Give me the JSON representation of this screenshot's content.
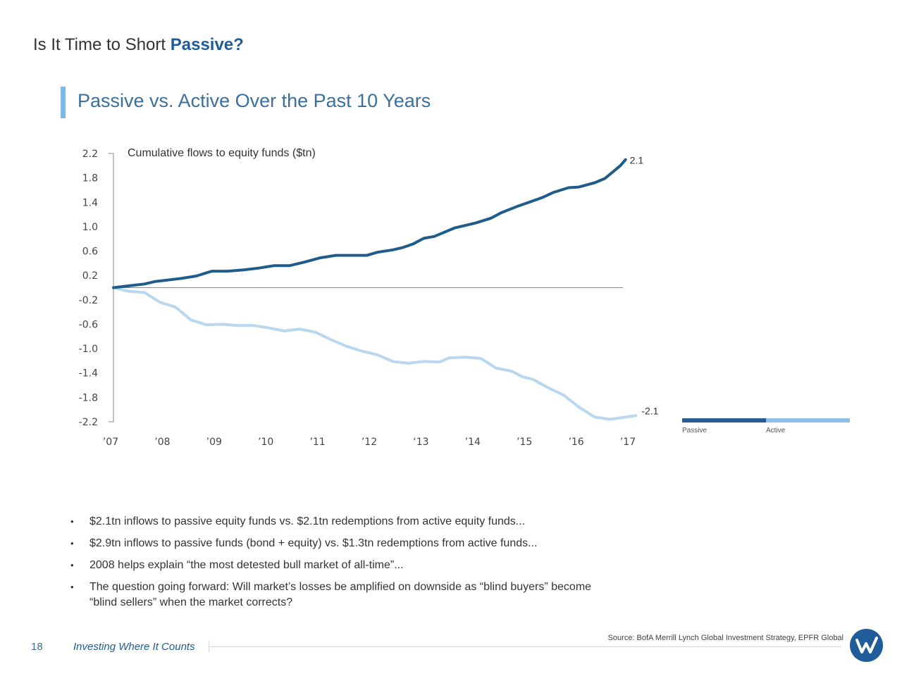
{
  "header": {
    "title_plain": "Is It Time to Short",
    "title_emphasis": "Passive?",
    "subtitle": "Passive vs. Active Over the Past 10 Years"
  },
  "chart_data": {
    "type": "line",
    "annotation": "Cumulative flows to equity funds ($tn)",
    "ylim": [
      -2.2,
      2.2
    ],
    "y_ticks": [
      "2.2",
      "1.8",
      "1.4",
      "1.0",
      "0.6",
      "0.2",
      "-0.2",
      "-0.6",
      "-1.0",
      "-1.4",
      "-1.8",
      "-2.2"
    ],
    "x_ticks": [
      "’07",
      "’08",
      "’09",
      "’10",
      "’11",
      "’12",
      "‘13",
      "’14",
      "’15",
      "’16",
      "’17"
    ],
    "x_tick_years": [
      2007.0,
      2008.0,
      2009.0,
      2010.0,
      2011.0,
      2012.0,
      2013.0,
      2014.0,
      2015.0,
      2016.0,
      2017.0
    ],
    "grid": false,
    "legend_position": "right",
    "series": [
      {
        "name": "Passive",
        "color": "#1f5c8c",
        "end_label": "2.1",
        "points": [
          [
            2007.0,
            0.0
          ],
          [
            2007.3,
            0.03
          ],
          [
            2007.6,
            0.06
          ],
          [
            2007.8,
            0.1
          ],
          [
            2008.0,
            0.12
          ],
          [
            2008.3,
            0.15
          ],
          [
            2008.6,
            0.19
          ],
          [
            2008.9,
            0.27
          ],
          [
            2009.2,
            0.27
          ],
          [
            2009.5,
            0.29
          ],
          [
            2009.8,
            0.32
          ],
          [
            2010.1,
            0.36
          ],
          [
            2010.4,
            0.36
          ],
          [
            2010.7,
            0.42
          ],
          [
            2011.0,
            0.49
          ],
          [
            2011.3,
            0.53
          ],
          [
            2011.6,
            0.53
          ],
          [
            2011.9,
            0.53
          ],
          [
            2012.1,
            0.58
          ],
          [
            2012.4,
            0.62
          ],
          [
            2012.6,
            0.66
          ],
          [
            2012.8,
            0.72
          ],
          [
            2013.0,
            0.81
          ],
          [
            2013.2,
            0.84
          ],
          [
            2013.4,
            0.91
          ],
          [
            2013.6,
            0.98
          ],
          [
            2013.8,
            1.02
          ],
          [
            2014.0,
            1.06
          ],
          [
            2014.3,
            1.14
          ],
          [
            2014.5,
            1.23
          ],
          [
            2014.8,
            1.33
          ],
          [
            2015.0,
            1.39
          ],
          [
            2015.3,
            1.48
          ],
          [
            2015.5,
            1.56
          ],
          [
            2015.8,
            1.64
          ],
          [
            2016.0,
            1.65
          ],
          [
            2016.3,
            1.72
          ],
          [
            2016.5,
            1.79
          ],
          [
            2016.8,
            2.0
          ],
          [
            2016.9,
            2.1
          ]
        ]
      },
      {
        "name": "Active",
        "color": "#b9d7ef",
        "end_label": "-2.1",
        "points": [
          [
            2007.0,
            0.0
          ],
          [
            2007.3,
            -0.06
          ],
          [
            2007.6,
            -0.08
          ],
          [
            2007.9,
            -0.24
          ],
          [
            2008.2,
            -0.32
          ],
          [
            2008.5,
            -0.53
          ],
          [
            2008.8,
            -0.61
          ],
          [
            2009.1,
            -0.6
          ],
          [
            2009.4,
            -0.62
          ],
          [
            2009.7,
            -0.62
          ],
          [
            2010.0,
            -0.66
          ],
          [
            2010.3,
            -0.71
          ],
          [
            2010.6,
            -0.68
          ],
          [
            2010.9,
            -0.73
          ],
          [
            2011.2,
            -0.85
          ],
          [
            2011.5,
            -0.96
          ],
          [
            2011.8,
            -1.04
          ],
          [
            2012.1,
            -1.1
          ],
          [
            2012.4,
            -1.21
          ],
          [
            2012.7,
            -1.24
          ],
          [
            2013.0,
            -1.21
          ],
          [
            2013.3,
            -1.22
          ],
          [
            2013.5,
            -1.15
          ],
          [
            2013.8,
            -1.14
          ],
          [
            2014.1,
            -1.16
          ],
          [
            2014.4,
            -1.32
          ],
          [
            2014.7,
            -1.37
          ],
          [
            2014.9,
            -1.46
          ],
          [
            2015.1,
            -1.5
          ],
          [
            2015.4,
            -1.64
          ],
          [
            2015.7,
            -1.76
          ],
          [
            2016.0,
            -1.96
          ],
          [
            2016.3,
            -2.12
          ],
          [
            2016.6,
            -2.16
          ],
          [
            2017.1,
            -2.1
          ]
        ]
      }
    ]
  },
  "legend": {
    "items": [
      {
        "label": "Passive",
        "color": "#2a5c94"
      },
      {
        "label": "Active",
        "color": "#8dbfe6"
      }
    ]
  },
  "bullets": [
    "$2.1tn inflows to passive equity funds vs. $2.1tn redemptions from active equity funds...",
    "$2.9tn inflows to passive funds (bond + equity) vs. $1.3tn redemptions from active funds...",
    "2008 helps explain “the most detested bull market of all-time”...",
    "The question going forward: Will market’s losses be amplified on downside as “blind buyers” become “blind sellers” when the market corrects?"
  ],
  "bullet_marker": "•",
  "footer": {
    "page_number": "18",
    "brand": "Investing Where It Counts",
    "source": "Source: BofA Merrill Lynch Global Investment Strategy, EPFR Global"
  },
  "logo": {
    "name": "company-logo",
    "color": "#1f5c99"
  }
}
